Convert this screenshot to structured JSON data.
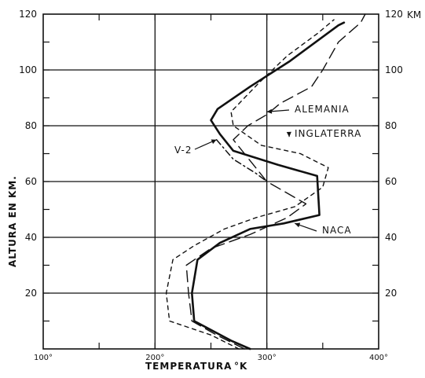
{
  "chart_data": {
    "type": "line",
    "xlabel": "TEMPERATURA",
    "xlabel_unit": "°K",
    "ylabel": "ALTURA EN KM.",
    "right_unit_label": "KM",
    "xlim": [
      100,
      400
    ],
    "ylim": [
      0,
      120
    ],
    "grid": true,
    "x_major_ticks": [
      100,
      200,
      300,
      400
    ],
    "x_tick_labels": [
      "100°",
      "200°",
      "300°",
      "400°"
    ],
    "y_major_ticks": [
      20,
      40,
      60,
      80,
      100,
      120
    ],
    "y_left_labels": [
      "20",
      "40",
      "60",
      "80",
      "100",
      "120"
    ],
    "y_right_labels": [
      "20",
      "40",
      "60",
      "80",
      "100",
      "120"
    ],
    "series": [
      {
        "name": "NACA",
        "style": "solid",
        "points": [
          [
            285,
            0
          ],
          [
            268,
            3
          ],
          [
            235,
            10
          ],
          [
            233,
            20
          ],
          [
            238,
            32
          ],
          [
            258,
            38
          ],
          [
            285,
            43
          ],
          [
            315,
            45
          ],
          [
            347,
            48
          ],
          [
            345,
            62
          ],
          [
            310,
            66
          ],
          [
            270,
            71
          ],
          [
            258,
            77
          ],
          [
            250,
            82
          ],
          [
            256,
            86
          ],
          [
            285,
            94
          ],
          [
            320,
            103
          ],
          [
            364,
            116
          ],
          [
            369,
            117
          ]
        ]
      },
      {
        "name": "V-2",
        "style": "dash-dot",
        "points": [
          [
            255,
            75
          ],
          [
            270,
            68
          ],
          [
            290,
            63
          ],
          [
            300,
            60
          ]
        ]
      },
      {
        "name": "ALEMANIA",
        "style": "long-dash",
        "points": [
          [
            280,
            0
          ],
          [
            255,
            5
          ],
          [
            233,
            10
          ],
          [
            230,
            20
          ],
          [
            228,
            30
          ],
          [
            250,
            36
          ],
          [
            285,
            41
          ],
          [
            318,
            47
          ],
          [
            335,
            52
          ],
          [
            300,
            60
          ],
          [
            270,
            75
          ],
          [
            283,
            80
          ],
          [
            300,
            84
          ],
          [
            312,
            88
          ],
          [
            340,
            94
          ],
          [
            350,
            100
          ],
          [
            364,
            110
          ],
          [
            384,
            117
          ],
          [
            388,
            120
          ]
        ]
      },
      {
        "name": "INGLATERRA",
        "style": "short-dash",
        "points": [
          [
            275,
            0
          ],
          [
            250,
            5
          ],
          [
            213,
            10
          ],
          [
            210,
            20
          ],
          [
            216,
            32
          ],
          [
            235,
            37
          ],
          [
            262,
            43
          ],
          [
            290,
            47
          ],
          [
            325,
            51
          ],
          [
            350,
            58
          ],
          [
            355,
            65
          ],
          [
            330,
            70
          ],
          [
            295,
            73
          ],
          [
            270,
            80
          ],
          [
            268,
            85
          ],
          [
            292,
            95
          ],
          [
            318,
            105
          ],
          [
            345,
            113
          ],
          [
            360,
            118
          ]
        ]
      }
    ],
    "annotations": [
      {
        "text": "ALEMANIA",
        "target_x": 300,
        "target_y": 85
      },
      {
        "text": "INGLATERRA",
        "target_x": 320,
        "target_y": 76
      },
      {
        "text": "V-2",
        "target_x": 255,
        "target_y": 75
      },
      {
        "text": "NACA",
        "target_x": 325,
        "target_y": 45
      }
    ]
  }
}
